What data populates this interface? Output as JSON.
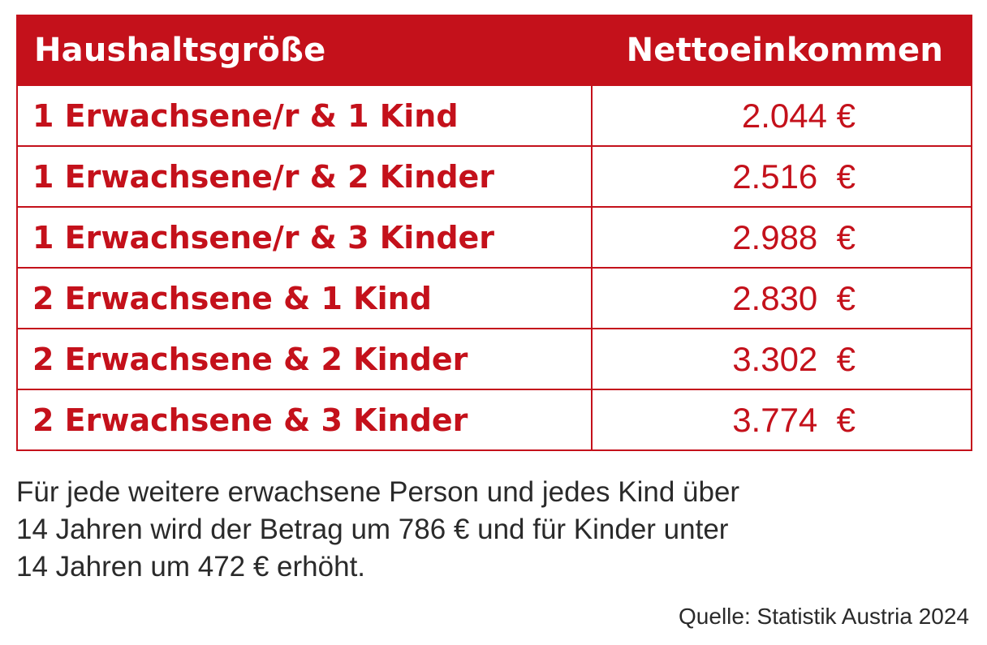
{
  "table": {
    "headers": {
      "household_size": "Haushaltsgröße",
      "net_income": "Nettoeinkommen"
    },
    "rows": [
      {
        "household": "1 Erwachsene/r & 1 Kind",
        "income": "2.044 €"
      },
      {
        "household": "1 Erwachsene/r & 2 Kinder",
        "income": "2.516  €"
      },
      {
        "household": "1 Erwachsene/r & 3 Kinder",
        "income": "2.988  €"
      },
      {
        "household": "2 Erwachsene & 1 Kind",
        "income": "2.830  €"
      },
      {
        "household": "2 Erwachsene & 2 Kinder",
        "income": "3.302  €"
      },
      {
        "household": "2 Erwachsene & 3 Kinder",
        "income": "3.774  €"
      }
    ]
  },
  "note": {
    "lines": [
      "Für jede weitere erwachsene Person und jedes Kind über",
      "14 Jahren wird der Betrag um 786 € und für Kinder unter",
      "14 Jahren um 472 € erhöht."
    ]
  },
  "source": "Quelle: Statistik Austria 2024",
  "colors": {
    "accent": "#c4111b",
    "text": "#2a2a2a",
    "background": "#ffffff"
  }
}
